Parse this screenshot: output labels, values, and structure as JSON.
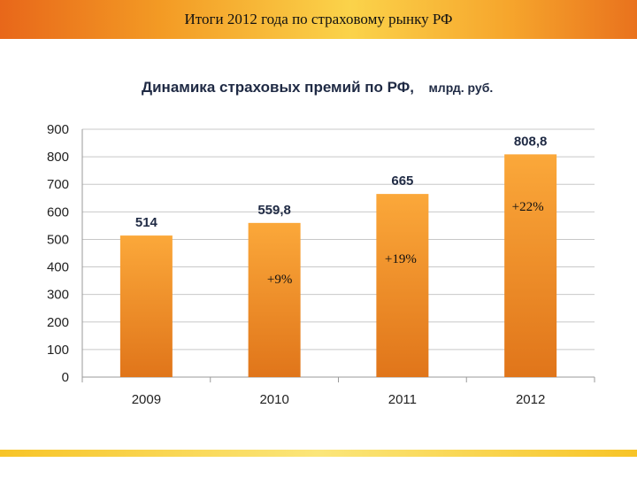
{
  "header": {
    "title": "Итоги 2012 года по страховому рынку РФ",
    "colors": {
      "bar_start": "#e8671a",
      "bar_mid": "#fbd34a",
      "bottom_stripe": "#f7c427"
    }
  },
  "chart_data": {
    "type": "bar",
    "title": "Динамика страховых премий по РФ,",
    "title_unit": "млрд. руб.",
    "categories": [
      "2009",
      "2010",
      "2011",
      "2012"
    ],
    "values": [
      514,
      559.8,
      665,
      808.8
    ],
    "value_labels": [
      "514",
      "559,8",
      "665",
      "808,8"
    ],
    "growth_labels": [
      "",
      "+9%",
      "+19%",
      "+22%"
    ],
    "ylim": [
      0,
      900
    ],
    "yticks": [
      0,
      100,
      200,
      300,
      400,
      500,
      600,
      700,
      800,
      900
    ],
    "grid": true,
    "legend": "none",
    "colors": {
      "bar_top": "#fba83a",
      "bar_bottom": "#e0751a",
      "grid": "#c8c8c8"
    }
  }
}
